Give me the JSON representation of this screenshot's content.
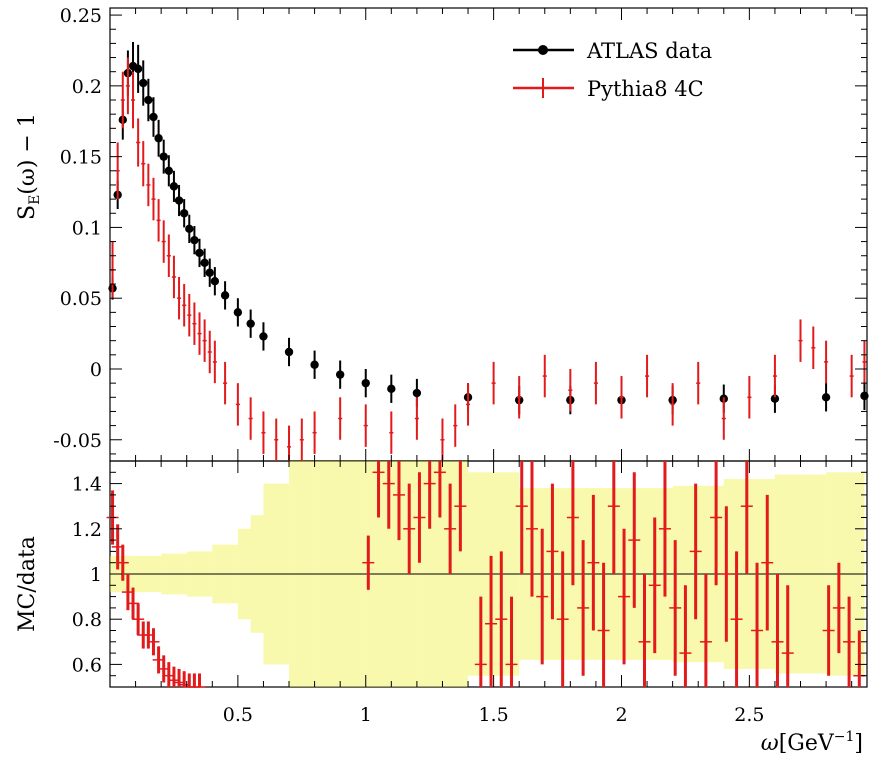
{
  "chart_data": {
    "type": "scatter",
    "upper_panel": {
      "ylabel_main": "S",
      "ylabel_sub": "E",
      "ylabel_rest": "(ω) − 1",
      "ylim": [
        -0.065,
        0.255
      ],
      "yticks": [
        -0.05,
        0,
        0.05,
        0.1,
        0.15,
        0.2,
        0.25
      ],
      "ytick_labels": [
        "-0.05",
        "0",
        "0.05",
        "0.1",
        "0.15",
        "0.2",
        "0.25"
      ],
      "legend_position": "top-right",
      "series": [
        {
          "name": "ATLAS data",
          "color": "#000000",
          "x": [
            0.01,
            0.03,
            0.05,
            0.07,
            0.09,
            0.11,
            0.13,
            0.15,
            0.17,
            0.19,
            0.21,
            0.23,
            0.25,
            0.27,
            0.29,
            0.31,
            0.33,
            0.35,
            0.37,
            0.39,
            0.41,
            0.45,
            0.5,
            0.55,
            0.6,
            0.7,
            0.8,
            0.9,
            1.0,
            1.1,
            1.2,
            1.4,
            1.6,
            1.8,
            2.0,
            2.2,
            2.4,
            2.6,
            2.8,
            2.95
          ],
          "y": [
            0.057,
            0.123,
            0.176,
            0.209,
            0.214,
            0.212,
            0.202,
            0.19,
            0.178,
            0.163,
            0.15,
            0.14,
            0.129,
            0.119,
            0.11,
            0.099,
            0.091,
            0.082,
            0.075,
            0.068,
            0.062,
            0.052,
            0.04,
            0.032,
            0.023,
            0.012,
            0.003,
            -0.004,
            -0.01,
            -0.014,
            -0.017,
            -0.02,
            -0.022,
            -0.022,
            -0.022,
            -0.022,
            -0.021,
            -0.021,
            -0.02,
            -0.019
          ],
          "err": [
            0.008,
            0.01,
            0.014,
            0.016,
            0.017,
            0.017,
            0.016,
            0.015,
            0.014,
            0.013,
            0.012,
            0.011,
            0.011,
            0.011,
            0.01,
            0.01,
            0.01,
            0.01,
            0.01,
            0.01,
            0.01,
            0.01,
            0.01,
            0.01,
            0.01,
            0.01,
            0.01,
            0.01,
            0.01,
            0.01,
            0.01,
            0.01,
            0.01,
            0.01,
            0.01,
            0.01,
            0.01,
            0.01,
            0.01,
            0.01
          ]
        },
        {
          "name": "Pythia8 4C",
          "color": "#e31a1c",
          "x": [
            0.01,
            0.03,
            0.05,
            0.07,
            0.09,
            0.11,
            0.13,
            0.15,
            0.17,
            0.19,
            0.21,
            0.23,
            0.25,
            0.27,
            0.29,
            0.31,
            0.33,
            0.35,
            0.37,
            0.39,
            0.41,
            0.45,
            0.5,
            0.55,
            0.6,
            0.65,
            0.7,
            0.75,
            0.8,
            0.9,
            1.0,
            1.1,
            1.2,
            1.3,
            1.35,
            1.4,
            1.5,
            1.6,
            1.7,
            1.8,
            1.9,
            2.0,
            2.1,
            2.2,
            2.3,
            2.4,
            2.5,
            2.6,
            2.7,
            2.75,
            2.8,
            2.9,
            2.95
          ],
          "y": [
            0.07,
            0.14,
            0.19,
            0.2,
            0.19,
            0.16,
            0.145,
            0.13,
            0.12,
            0.105,
            0.09,
            0.08,
            0.065,
            0.05,
            0.045,
            0.038,
            0.032,
            0.025,
            0.02,
            0.012,
            0.005,
            -0.01,
            -0.025,
            -0.035,
            -0.045,
            -0.05,
            -0.055,
            -0.05,
            -0.045,
            -0.035,
            -0.04,
            -0.045,
            -0.035,
            -0.05,
            -0.04,
            -0.025,
            -0.01,
            -0.02,
            -0.005,
            -0.015,
            -0.01,
            -0.02,
            -0.005,
            -0.025,
            -0.01,
            -0.035,
            -0.02,
            -0.005,
            0.02,
            0.015,
            0.005,
            -0.005,
            0.005
          ],
          "err": [
            0.02,
            0.02,
            0.02,
            0.02,
            0.02,
            0.017,
            0.016,
            0.015,
            0.015,
            0.015,
            0.015,
            0.015,
            0.015,
            0.015,
            0.015,
            0.015,
            0.015,
            0.015,
            0.015,
            0.015,
            0.015,
            0.015,
            0.015,
            0.015,
            0.015,
            0.015,
            0.015,
            0.015,
            0.015,
            0.015,
            0.015,
            0.015,
            0.015,
            0.015,
            0.015,
            0.015,
            0.015,
            0.015,
            0.015,
            0.015,
            0.015,
            0.015,
            0.015,
            0.015,
            0.015,
            0.015,
            0.015,
            0.015,
            0.015,
            0.015,
            0.015,
            0.015,
            0.015
          ]
        }
      ]
    },
    "lower_panel": {
      "ylabel": "MC/data",
      "ylim": [
        0.5,
        1.5
      ],
      "yticks": [
        0.6,
        0.8,
        1,
        1.2,
        1.4
      ],
      "ytick_labels": [
        "0.6",
        "0.8",
        "1",
        "1.2",
        "1.4"
      ],
      "reference_line": 1,
      "band_color": "#f2f24a",
      "band": {
        "x": [
          0.0,
          0.1,
          0.2,
          0.3,
          0.4,
          0.5,
          0.55,
          0.6,
          0.7,
          0.8,
          1.0,
          1.2,
          1.4,
          1.6,
          1.8,
          2.0,
          2.2,
          2.4,
          2.6,
          2.8,
          2.95
        ],
        "half_width": [
          0.08,
          0.08,
          0.09,
          0.1,
          0.13,
          0.2,
          0.26,
          0.4,
          0.5,
          0.5,
          0.5,
          0.5,
          0.45,
          0.38,
          0.38,
          0.38,
          0.39,
          0.42,
          0.44,
          0.45,
          0.45
        ]
      },
      "ratio": {
        "color": "#e31a1c",
        "x": [
          0.01,
          0.03,
          0.05,
          0.07,
          0.09,
          0.11,
          0.13,
          0.15,
          0.17,
          0.19,
          0.21,
          0.23,
          0.25,
          0.27,
          0.29,
          0.31,
          0.33,
          0.35,
          1.01,
          1.05,
          1.09,
          1.13,
          1.17,
          1.21,
          1.25,
          1.29,
          1.33,
          1.37,
          1.45,
          1.49,
          1.53,
          1.57,
          1.61,
          1.65,
          1.69,
          1.73,
          1.77,
          1.81,
          1.85,
          1.89,
          1.93,
          1.97,
          2.01,
          2.05,
          2.09,
          2.13,
          2.17,
          2.21,
          2.25,
          2.29,
          2.33,
          2.37,
          2.41,
          2.45,
          2.49,
          2.53,
          2.57,
          2.61,
          2.65,
          2.81,
          2.85,
          2.89,
          2.93
        ],
        "y": [
          1.25,
          1.12,
          1.05,
          0.92,
          0.87,
          0.8,
          0.73,
          0.73,
          0.7,
          0.62,
          0.58,
          0.55,
          0.53,
          0.52,
          0.51,
          0.5,
          0.5,
          0.5,
          1.05,
          1.45,
          1.4,
          1.35,
          1.2,
          1.25,
          1.4,
          1.45,
          1.2,
          1.3,
          0.6,
          0.78,
          0.8,
          0.6,
          1.3,
          1.2,
          0.9,
          1.1,
          0.8,
          1.25,
          0.85,
          1.05,
          0.75,
          1.3,
          0.9,
          1.15,
          0.7,
          0.95,
          1.2,
          0.85,
          0.65,
          1.1,
          0.7,
          1.25,
          1.0,
          0.8,
          1.3,
          0.75,
          1.05,
          0.7,
          0.65,
          0.75,
          0.85,
          0.7,
          0.55
        ],
        "err": [
          0.12,
          0.1,
          0.08,
          0.08,
          0.07,
          0.07,
          0.06,
          0.06,
          0.06,
          0.06,
          0.06,
          0.06,
          0.06,
          0.06,
          0.06,
          0.06,
          0.06,
          0.06,
          0.12,
          0.2,
          0.2,
          0.2,
          0.2,
          0.2,
          0.2,
          0.2,
          0.2,
          0.2,
          0.3,
          0.3,
          0.3,
          0.3,
          0.3,
          0.3,
          0.3,
          0.3,
          0.3,
          0.3,
          0.3,
          0.3,
          0.3,
          0.3,
          0.3,
          0.3,
          0.3,
          0.3,
          0.3,
          0.3,
          0.3,
          0.3,
          0.3,
          0.3,
          0.3,
          0.3,
          0.3,
          0.3,
          0.3,
          0.3,
          0.3,
          0.2,
          0.2,
          0.2,
          0.2
        ]
      }
    },
    "x_axis": {
      "xlabel_main": "ω",
      "xlabel_unit": "[GeV",
      "xlabel_sup": "−1",
      "xlabel_close": "]",
      "xlim": [
        0.0,
        2.96
      ],
      "xticks": [
        0.5,
        1,
        1.5,
        2,
        2.5
      ],
      "xtick_labels": [
        "0.5",
        "1",
        "1.5",
        "2",
        "2.5"
      ]
    }
  }
}
